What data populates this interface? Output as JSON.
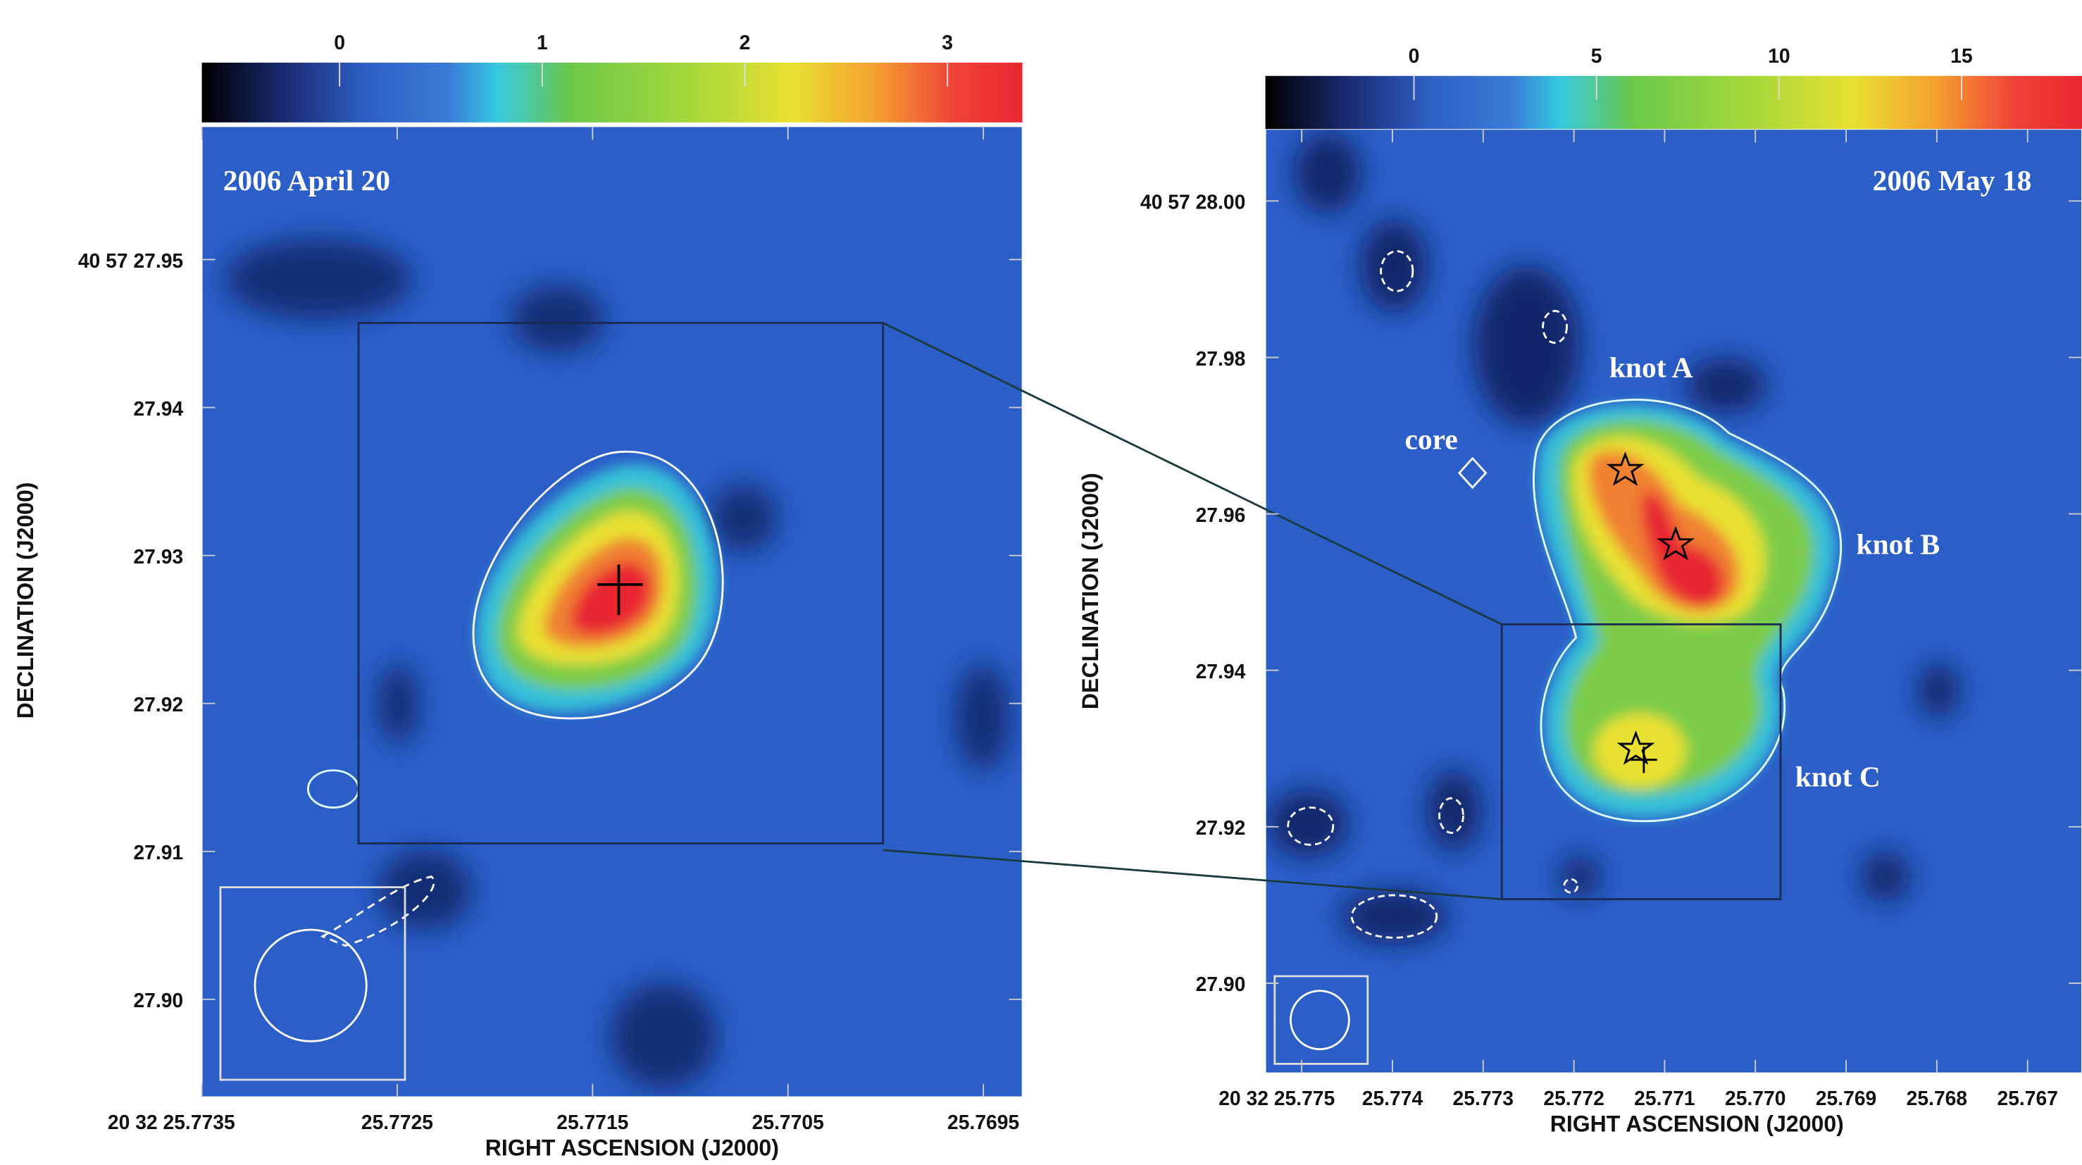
{
  "chart_data": [
    {
      "type": "map",
      "title": "2006 April 20",
      "xlabel": "RIGHT ASCENSION (J2000)",
      "ylabel": "DECLINATION (J2000)",
      "xlim": [
        25.7735,
        25.7693
      ],
      "ylim": [
        27.8934,
        27.959
      ],
      "xticks": [
        {
          "value": 25.7735,
          "label": "20 32 25.7735"
        },
        25.7725,
        25.7715,
        25.7705,
        25.7695
      ],
      "yticks": [
        {
          "value": 27.9,
          "label": "27.90"
        },
        27.91,
        27.92,
        27.93,
        27.94,
        {
          "value": 27.95,
          "label": "40 57 27.95"
        }
      ],
      "clim": [
        -0.68,
        3.37
      ],
      "cticks": [
        0,
        1,
        2,
        3
      ]
    },
    {
      "type": "map",
      "title": "2006 May 18",
      "xlabel": "RIGHT ASCENSION (J2000)",
      "ylabel": "DECLINATION (J2000)",
      "xlim": [
        25.7754,
        25.7664
      ],
      "ylim": [
        27.8885,
        28.0092
      ],
      "xticks": [
        {
          "value": 25.775,
          "label": "20 32 25.775"
        },
        25.774,
        25.773,
        25.772,
        25.771,
        {
          "value": 25.77,
          "label": "25.770"
        },
        25.769,
        25.768,
        25.767
      ],
      "yticks": [
        {
          "value": 27.9,
          "label": "27.90"
        },
        27.92,
        27.94,
        27.96,
        27.98,
        {
          "value": 28,
          "label": "40 57 28.00"
        }
      ],
      "clim": [
        -4.07,
        18.3
      ],
      "cticks": [
        0,
        5,
        10,
        15
      ],
      "annotations": [
        "knot A",
        "knot B",
        "knot C",
        "core"
      ]
    }
  ]
}
